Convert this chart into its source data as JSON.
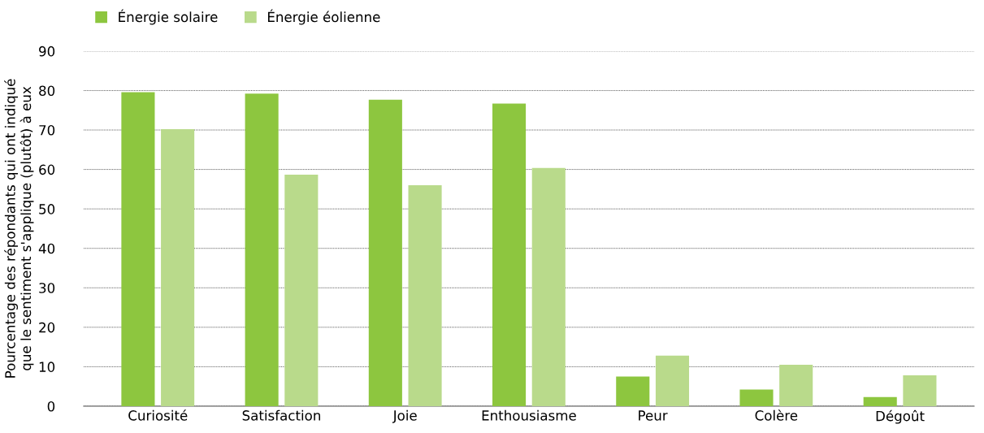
{
  "chart_data": {
    "type": "bar",
    "ylabel": "Pourcentage des répondants qui ont indiqué\nque le sentiment s'applique (plutôt) à eux",
    "categories": [
      "Curiosité",
      "Satisfaction",
      "Joie",
      "Enthousiasme",
      "Peur",
      "Colère",
      "Dégoût"
    ],
    "series": [
      {
        "name": "Énergie solaire",
        "color": "#8dc63f",
        "values": [
          79.6,
          79.2,
          77.7,
          76.7,
          7.5,
          4.2,
          2.3
        ]
      },
      {
        "name": "Énergie éolienne",
        "color": "#b9da8b",
        "values": [
          70.2,
          58.7,
          56.0,
          60.4,
          12.8,
          10.5,
          7.8
        ]
      }
    ],
    "ylim": [
      0,
      90
    ],
    "yticks": [
      0,
      10,
      20,
      30,
      40,
      50,
      60,
      70,
      80,
      90
    ],
    "grid": "y",
    "legend": "top left"
  }
}
